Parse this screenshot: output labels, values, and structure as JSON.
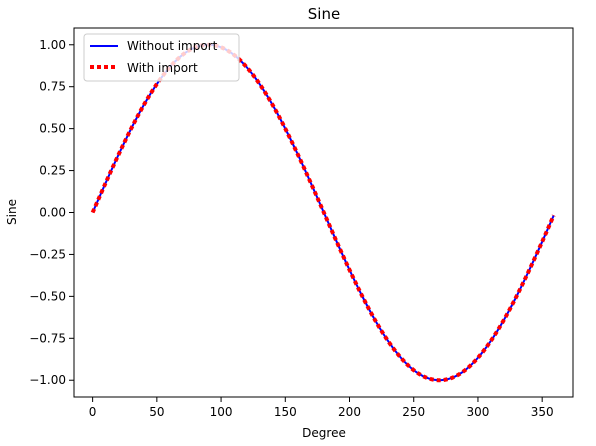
{
  "chart_data": {
    "type": "line",
    "title": "Sine",
    "xlabel": "Degree",
    "ylabel": "Sine",
    "xlim": [
      -14.5,
      374
    ],
    "ylim": [
      -1.1,
      1.1
    ],
    "xticks": [
      0,
      50,
      100,
      150,
      200,
      250,
      300,
      350
    ],
    "yticks": [
      -1.0,
      -0.75,
      -0.5,
      -0.25,
      0.0,
      0.25,
      0.5,
      0.75,
      1.0
    ],
    "ytick_labels": [
      "−1.00",
      "−0.75",
      "−0.50",
      "−0.25",
      "0.00",
      "0.25",
      "0.50",
      "0.75",
      "1.00"
    ],
    "grid": false,
    "legend_position": "top-left",
    "x": [
      0,
      10,
      20,
      30,
      40,
      50,
      60,
      70,
      80,
      90,
      100,
      110,
      120,
      130,
      140,
      150,
      160,
      170,
      180,
      190,
      200,
      210,
      220,
      230,
      240,
      250,
      260,
      270,
      280,
      290,
      300,
      310,
      320,
      330,
      340,
      350,
      359
    ],
    "series": [
      {
        "name": "Without import",
        "color": "#0000ff",
        "style": "solid",
        "values": [
          0.0,
          0.174,
          0.342,
          0.5,
          0.643,
          0.766,
          0.866,
          0.94,
          0.985,
          1.0,
          0.985,
          0.94,
          0.866,
          0.766,
          0.643,
          0.5,
          0.342,
          0.174,
          0.0,
          -0.174,
          -0.342,
          -0.5,
          -0.643,
          -0.766,
          -0.866,
          -0.94,
          -0.985,
          -1.0,
          -0.985,
          -0.94,
          -0.866,
          -0.766,
          -0.643,
          -0.5,
          -0.342,
          -0.174,
          -0.017
        ]
      },
      {
        "name": "With import",
        "color": "#ff0000",
        "style": "dotted",
        "values": [
          0.0,
          0.174,
          0.342,
          0.5,
          0.643,
          0.766,
          0.866,
          0.94,
          0.985,
          1.0,
          0.985,
          0.94,
          0.866,
          0.766,
          0.643,
          0.5,
          0.342,
          0.174,
          0.0,
          -0.174,
          -0.342,
          -0.5,
          -0.643,
          -0.766,
          -0.866,
          -0.94,
          -0.985,
          -1.0,
          -0.985,
          -0.94,
          -0.866,
          -0.766,
          -0.643,
          -0.5,
          -0.342,
          -0.174,
          -0.017
        ]
      }
    ]
  }
}
